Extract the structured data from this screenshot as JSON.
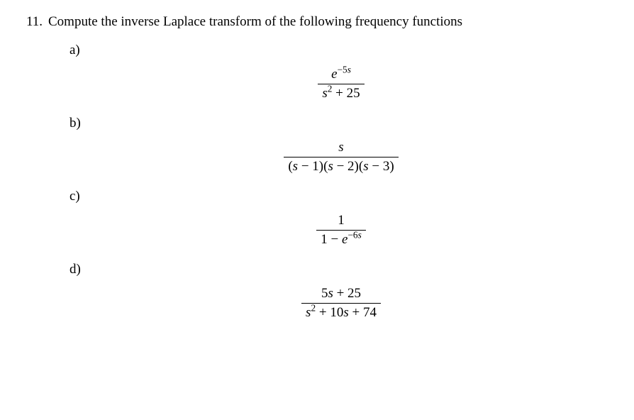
{
  "problem": {
    "number": "11.",
    "text": "Compute the inverse Laplace transform of the following frequency functions",
    "parts": [
      {
        "label": "a)",
        "formula": {
          "numerator_html": "<span class='i'>e</span><span class='sup'>&minus;5<span class='i'>s</span></span>",
          "denominator_html": "<span class='i'>s</span><span class='sup'>2</span> + 25"
        }
      },
      {
        "label": "b)",
        "formula": {
          "numerator_html": "<span class='i'>s</span>",
          "denominator_html": "(<span class='i'>s</span> &minus; 1)(<span class='i'>s</span> &minus; 2)(<span class='i'>s</span> &minus; 3)"
        }
      },
      {
        "label": "c)",
        "formula": {
          "numerator_html": "1",
          "denominator_html": "1 &minus; <span class='i'>e</span><span class='sup'>&minus;6<span class='i'>s</span></span>"
        }
      },
      {
        "label": "d)",
        "formula": {
          "numerator_html": "5<span class='i'>s</span> + 25",
          "denominator_html": "<span class='i'>s</span><span class='sup'>2</span> + 10<span class='i'>s</span> + 74"
        }
      }
    ]
  }
}
